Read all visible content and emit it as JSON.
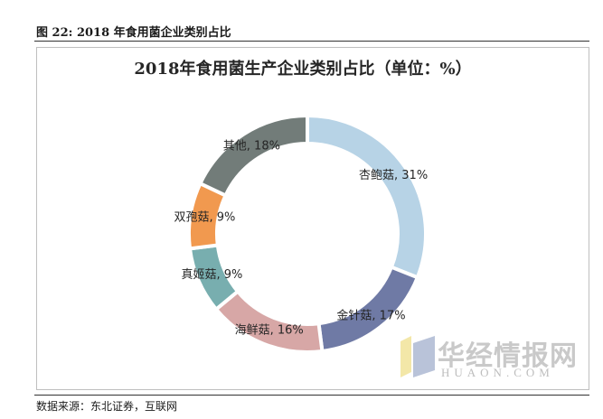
{
  "figure": {
    "caption": "图 22: 2018 年食用菌企业类别占比",
    "source": "数据来源：东北证券，互联网"
  },
  "watermark": {
    "name": "华经情报网",
    "domain": "HUAON.COM",
    "colors": [
      "#f3e7a8",
      "#b9c3d9"
    ]
  },
  "chart_data": {
    "type": "pie",
    "donut": true,
    "title": "2018年食用菌生产企业类别占比（单位：%）",
    "categories": [
      "杏鲍菇",
      "金针菇",
      "海鲜菇",
      "真姬菇",
      "双孢菇",
      "其他"
    ],
    "values": [
      31,
      17,
      16,
      9,
      9,
      18
    ],
    "labels": [
      "杏鲍菇, 31%",
      "金针菇, 17%",
      "海鲜菇, 16%",
      "真姬菇, 9%",
      "双孢菇, 9%",
      "其他, 18%"
    ],
    "colors": [
      "#b7d3e6",
      "#6f7aa5",
      "#d7a7a6",
      "#78aeaf",
      "#f1994f",
      "#727c79"
    ],
    "legend": "none"
  }
}
